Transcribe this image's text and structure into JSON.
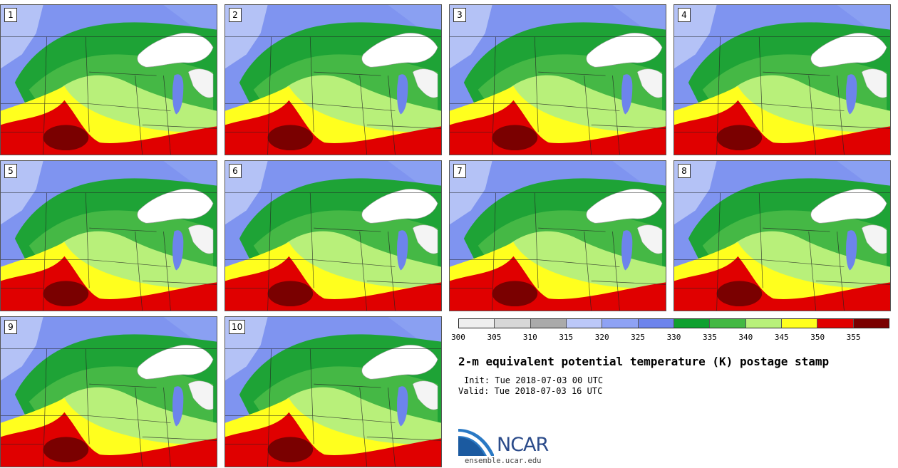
{
  "title": "2-m equivalent potential temperature (K) postage stamp",
  "init": "Init: Tue 2018-07-03 00 UTC",
  "valid": "Valid: Tue 2018-07-03 16 UTC",
  "logo_text": "NCAR",
  "site": "ensemble.ucar.edu",
  "members": [
    {
      "label": "1"
    },
    {
      "label": "2"
    },
    {
      "label": "3"
    },
    {
      "label": "4"
    },
    {
      "label": "5"
    },
    {
      "label": "6"
    },
    {
      "label": "7"
    },
    {
      "label": "8"
    },
    {
      "label": "9"
    },
    {
      "label": "10"
    }
  ],
  "colorbar": {
    "ticks": [
      "300",
      "305",
      "310",
      "315",
      "320",
      "325",
      "330",
      "335",
      "340",
      "345",
      "350",
      "355"
    ],
    "colors": [
      "#eeeeee",
      "#d7d7d7",
      "#aaaaaa",
      "#bcc8f8",
      "#8ea2f4",
      "#6d84ec",
      "#0fa02f",
      "#43b843",
      "#b8f07a",
      "#ffff1e",
      "#e00000",
      "#7a0000"
    ]
  },
  "colors": {
    "lake": "#ffffff",
    "border": "#222222",
    "logo_blue": "#2b4b8a"
  }
}
